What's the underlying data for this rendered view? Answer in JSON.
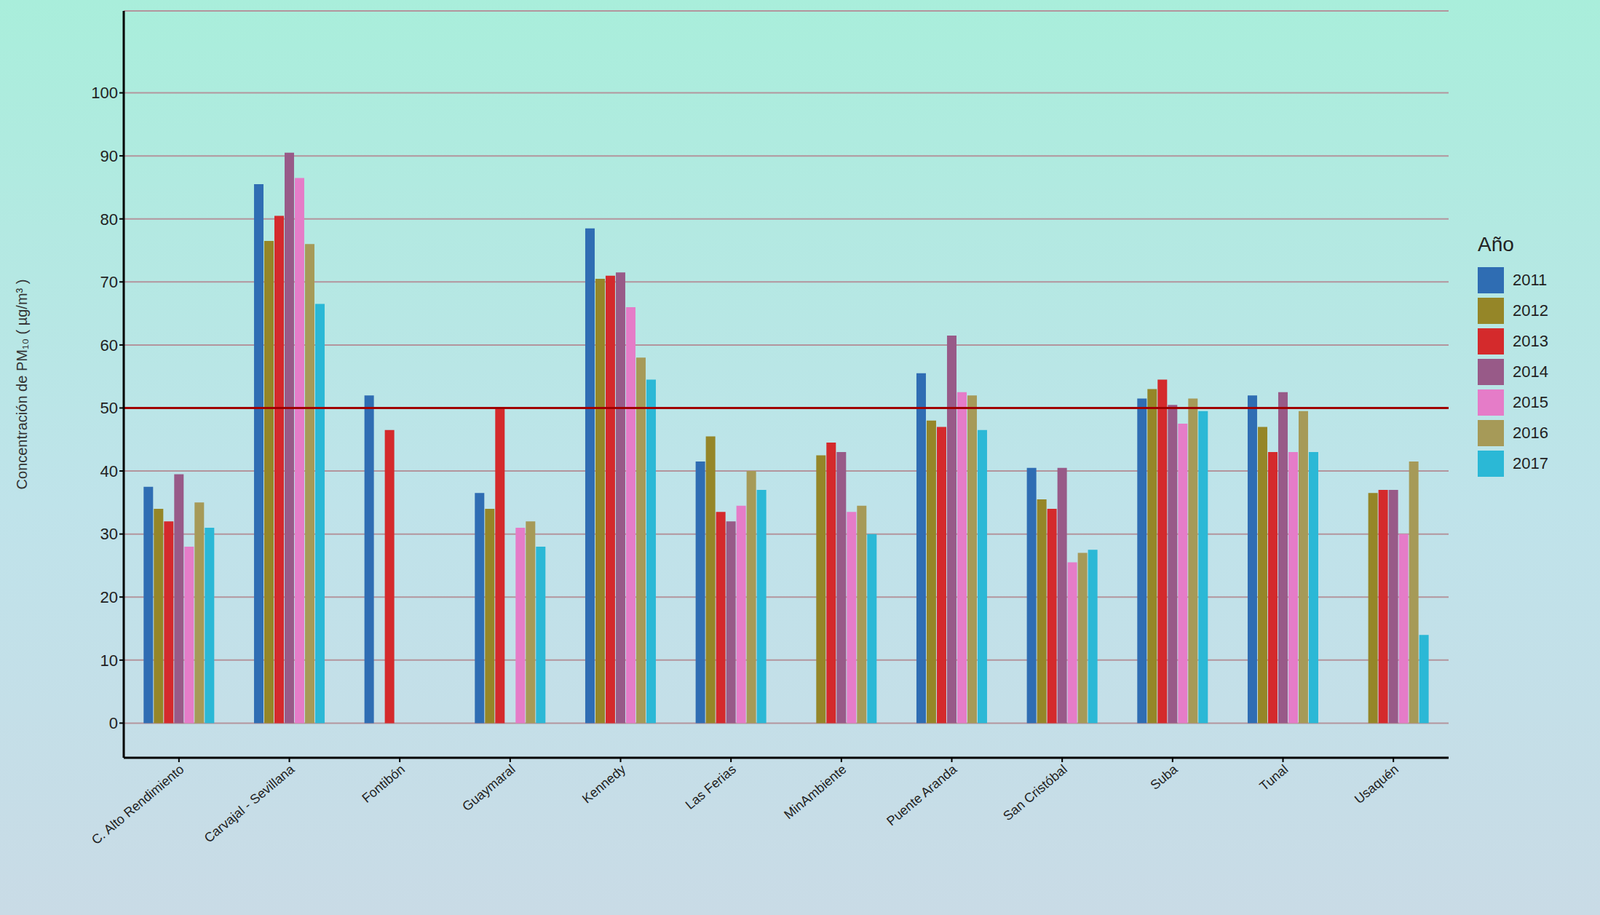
{
  "chart_data": {
    "type": "bar",
    "y_label": "Concentración de PM₁₀ ( µg/m³ )",
    "legend_title": "Año",
    "legend": "right",
    "grid": true,
    "ylim": [
      -5.5,
      113
    ],
    "yticks": [
      0,
      10,
      20,
      30,
      40,
      50,
      60,
      70,
      80,
      90,
      100
    ],
    "reference_line": 50,
    "categories": [
      "C. Alto Rendimiento",
      "Carvajal - Sevillana",
      "Fontibón",
      "Guaymaral",
      "Kennedy",
      "Las Ferias",
      "MinAmbiente",
      "Puente Aranda",
      "San Cristóbal",
      "Suba",
      "Tunal",
      "Usaquén"
    ],
    "series": [
      {
        "name": "2011",
        "color": "#2f6db3",
        "values": [
          37.5,
          85.5,
          52,
          36.5,
          78.5,
          41.5,
          null,
          55.5,
          40.5,
          51.5,
          52,
          null
        ]
      },
      {
        "name": "2012",
        "color": "#958628",
        "values": [
          34,
          76.5,
          null,
          34,
          70.5,
          45.5,
          42.5,
          48,
          35.5,
          53,
          47,
          36.5
        ]
      },
      {
        "name": "2013",
        "color": "#d42a2c",
        "values": [
          32,
          80.5,
          46.5,
          50,
          71,
          33.5,
          44.5,
          47,
          34,
          54.5,
          43,
          37
        ]
      },
      {
        "name": "2014",
        "color": "#985a88",
        "values": [
          39.5,
          90.5,
          null,
          null,
          71.5,
          32,
          43,
          61.5,
          40.5,
          50.5,
          52.5,
          37
        ]
      },
      {
        "name": "2015",
        "color": "#e57cc8",
        "values": [
          28,
          86.5,
          null,
          31,
          66,
          34.5,
          33.5,
          52.5,
          25.5,
          47.5,
          43,
          30
        ]
      },
      {
        "name": "2016",
        "color": "#a69a58",
        "values": [
          35,
          76,
          null,
          32,
          58,
          40,
          34.5,
          52,
          27,
          51.5,
          49.5,
          41.5
        ]
      },
      {
        "name": "2017",
        "color": "#2bb8d6",
        "values": [
          31,
          66.5,
          null,
          28,
          54.5,
          37,
          30,
          46.5,
          27.5,
          49.5,
          43,
          14
        ]
      }
    ]
  }
}
